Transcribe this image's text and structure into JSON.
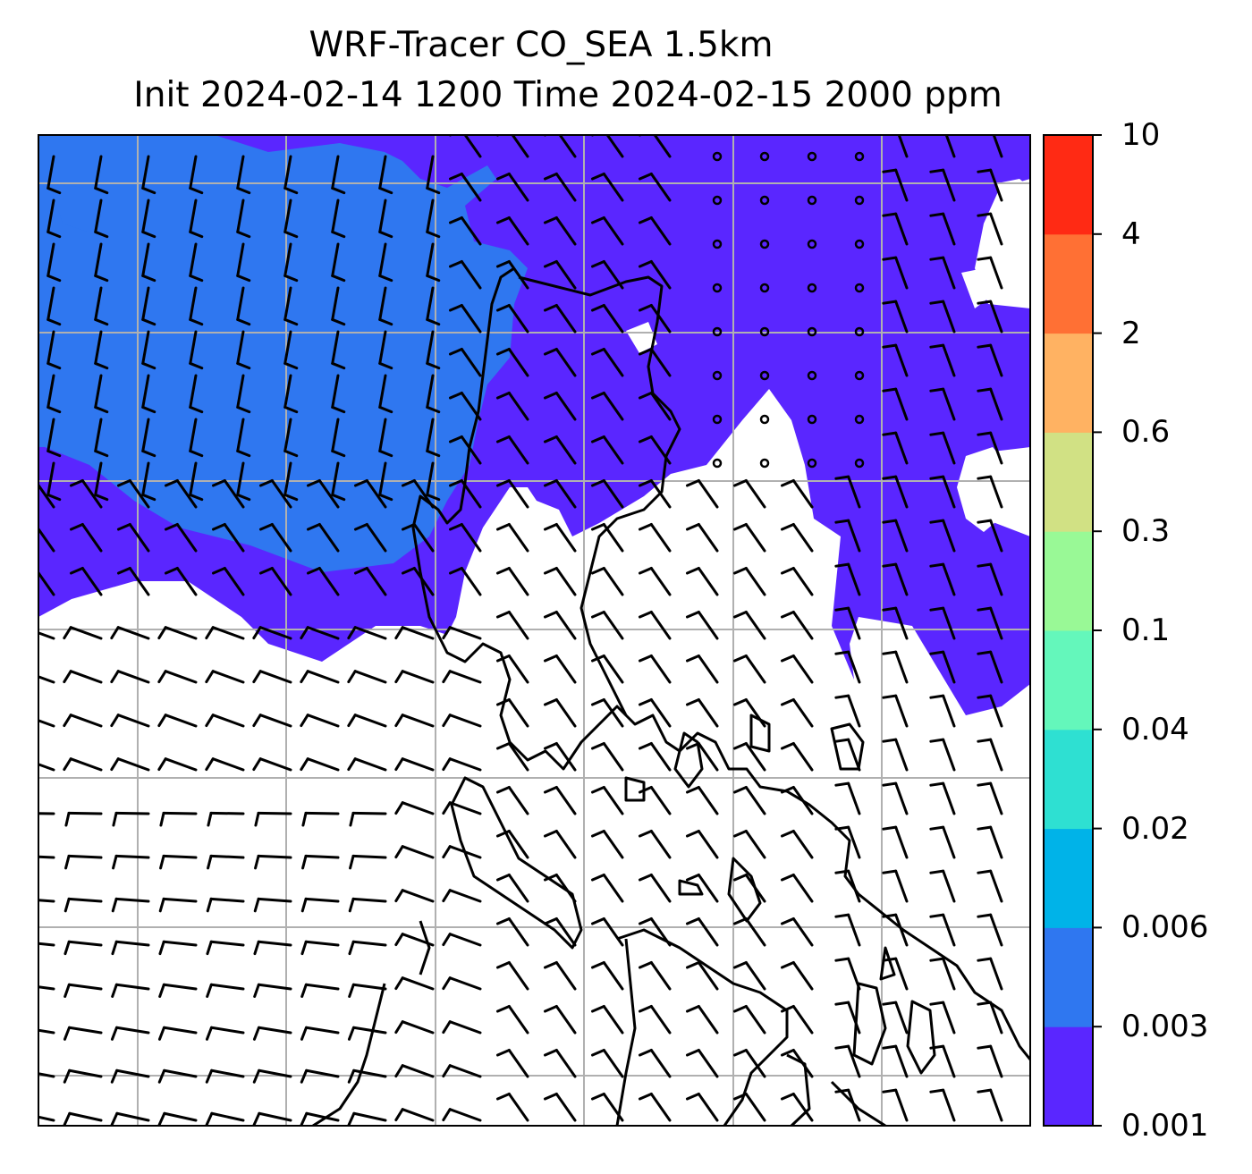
{
  "title": {
    "line1": "WRF-Tracer CO_SEA 1.5km",
    "line2": "Init 2024-02-14 1200 Time 2024-02-15 2000 ppm"
  },
  "colorbar": {
    "levels": [
      "0.001",
      "0.003",
      "0.006",
      "0.02",
      "0.04",
      "0.1",
      "0.3",
      "0.6",
      "2",
      "4",
      "10"
    ],
    "colors": [
      "#5a26ff",
      "#2f77f0",
      "#00b3e8",
      "#2ee0d2",
      "#64f7bb",
      "#99f996",
      "#d1e184",
      "#ffb262",
      "#ff7034",
      "#ff2a14"
    ]
  },
  "map": {
    "field_colors": {
      "level_0.001": "#5a26ff",
      "level_0.003": "#2f77f0",
      "below_range": "#ffffff"
    },
    "coastline_color": "#000000",
    "gridline_color": "#b0b0b0",
    "barb_color": "#000000"
  }
}
